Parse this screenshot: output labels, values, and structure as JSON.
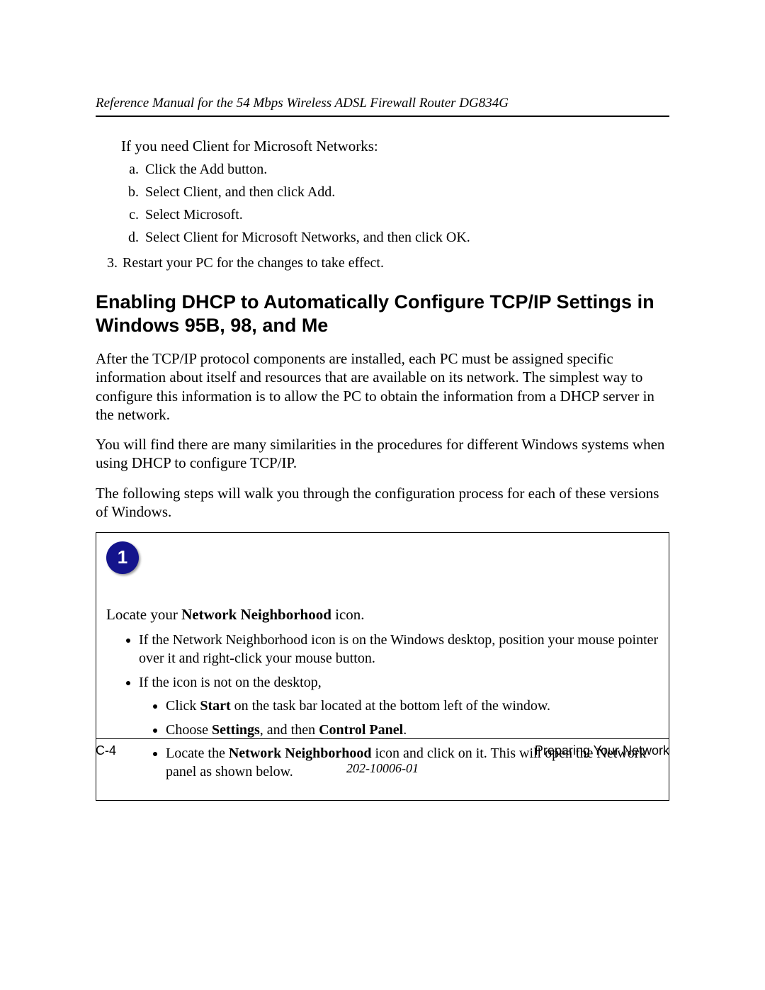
{
  "header": {
    "running_title": "Reference Manual for the 54 Mbps Wireless ADSL Firewall Router DG834G"
  },
  "intro_line": "If you need Client for Microsoft Networks:",
  "alpha_list": [
    "Click the Add button.",
    "Select Client, and then click Add.",
    "Select Microsoft.",
    "Select Client for Microsoft Networks, and then click OK."
  ],
  "num_item": "Restart your PC for the changes to take effect.",
  "section_heading": "Enabling DHCP to Automatically Configure TCP/IP Settings in Windows 95B, 98, and Me",
  "para1": "After the TCP/IP protocol components are installed, each PC must be assigned specific information about itself and resources that are available on its network. The simplest way to configure this information is to allow the PC to obtain the information from a DHCP server in the network.",
  "para2": "You will find there are many similarities in the procedures for different Windows systems when using DHCP to configure TCP/IP.",
  "para3": "The following steps will walk you through the configuration process for each of these versions of Windows.",
  "step": {
    "badge": "1",
    "badge_bg": "#14148c",
    "badge_fg": "#ffffff",
    "lead_pre": "Locate your ",
    "lead_bold": "Network Neighborhood",
    "lead_post": " icon.",
    "b1": "If the Network Neighborhood icon is on the Windows desktop, position your mouse pointer over it and right-click your mouse button.",
    "b2": "If the icon is not on the desktop,",
    "s1_pre": "Click ",
    "s1_bold": "Start",
    "s1_post": " on the task bar located at the bottom left of the window.",
    "s2_pre": "Choose ",
    "s2_bold1": "Settings",
    "s2_mid": ", and then ",
    "s2_bold2": "Control Panel",
    "s2_post": ".",
    "s3_pre": "Locate the ",
    "s3_bold": "Network Neighborhood",
    "s3_post": " icon and click on it. This will open the Network panel as shown below."
  },
  "footer": {
    "page_num": "C-4",
    "section": "Preparing Your Network",
    "doc_num": "202-10006-01"
  }
}
